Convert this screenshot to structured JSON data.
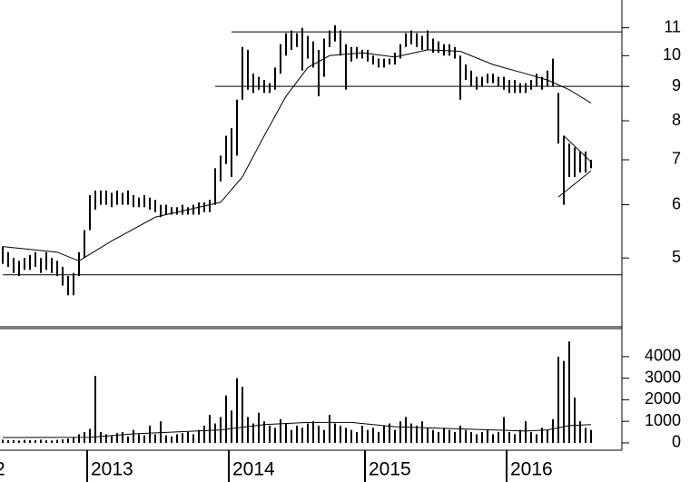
{
  "chart_data": [
    {
      "type": "range",
      "log": true,
      "color": "#000",
      "ylim": [
        3.95,
        12.1
      ],
      "yticks": [
        5,
        6,
        7,
        8,
        9,
        10,
        11
      ],
      "highs": [
        5.2,
        5.1,
        5.0,
        4.95,
        5.0,
        5.05,
        5.1,
        5.0,
        5.1,
        5.0,
        4.95,
        4.85,
        4.7,
        4.75,
        5.1,
        5.5,
        6.2,
        6.3,
        6.3,
        6.3,
        6.25,
        6.3,
        6.25,
        6.3,
        6.2,
        6.15,
        6.2,
        6.15,
        6.1,
        6.0,
        6.0,
        5.95,
        5.95,
        6.0,
        5.95,
        6.0,
        6.05,
        6.05,
        6.1,
        6.8,
        7.1,
        7.6,
        7.8,
        8.6,
        10.3,
        10.2,
        9.4,
        9.3,
        9.2,
        9.1,
        9.6,
        10.4,
        10.8,
        10.9,
        10.8,
        11.0,
        10.7,
        10.5,
        10.2,
        10.6,
        10.9,
        11.1,
        10.9,
        10.4,
        10.3,
        10.3,
        10.2,
        10.2,
        10.0,
        9.9,
        9.9,
        9.9,
        10.1,
        10.4,
        10.8,
        10.9,
        10.8,
        10.7,
        10.9,
        10.6,
        10.5,
        10.4,
        10.4,
        10.3,
        10.0,
        9.7,
        9.5,
        9.3,
        9.3,
        9.4,
        9.4,
        9.3,
        9.3,
        9.2,
        9.2,
        9.1,
        9.1,
        9.2,
        9.4,
        9.3,
        9.5,
        9.9,
        8.8,
        7.6,
        7.4,
        7.3,
        7.2,
        7.2,
        7.0
      ],
      "lows": [
        4.9,
        4.85,
        4.75,
        4.7,
        4.8,
        4.8,
        4.85,
        4.75,
        4.8,
        4.75,
        4.7,
        4.55,
        4.4,
        4.4,
        4.7,
        5.0,
        5.5,
        5.9,
        6.0,
        6.0,
        5.95,
        6.0,
        6.0,
        6.0,
        5.95,
        5.95,
        5.95,
        5.9,
        5.85,
        5.75,
        5.8,
        5.8,
        5.8,
        5.8,
        5.8,
        5.8,
        5.8,
        5.85,
        5.85,
        6.0,
        6.5,
        6.9,
        6.6,
        7.1,
        8.6,
        8.9,
        8.8,
        8.9,
        8.8,
        8.8,
        8.9,
        9.4,
        10.0,
        10.2,
        10.3,
        9.5,
        9.9,
        9.6,
        8.7,
        9.3,
        10.3,
        10.5,
        10.0,
        8.9,
        9.8,
        9.9,
        9.9,
        9.8,
        9.7,
        9.6,
        9.6,
        9.7,
        9.7,
        9.9,
        10.3,
        10.4,
        10.3,
        10.2,
        10.2,
        10.1,
        10.1,
        10.0,
        10.0,
        9.9,
        8.6,
        9.2,
        9.0,
        8.9,
        9.0,
        9.1,
        9.1,
        9.0,
        8.9,
        8.8,
        8.8,
        8.8,
        8.8,
        8.9,
        9.0,
        8.9,
        9.0,
        9.0,
        7.4,
        6.0,
        6.6,
        6.6,
        6.7,
        6.7,
        6.8
      ],
      "ma": {
        "x": [
          0,
          10,
          14,
          20,
          28,
          36,
          40,
          44,
          48,
          52,
          56,
          60,
          66,
          72,
          78,
          84,
          90,
          96,
          100,
          104,
          108
        ],
        "values": [
          5.2,
          5.1,
          4.95,
          5.3,
          5.75,
          5.95,
          6.05,
          6.6,
          7.6,
          8.7,
          9.6,
          10.0,
          10.1,
          9.95,
          10.2,
          10.15,
          9.7,
          9.4,
          9.2,
          8.9,
          8.5
        ]
      },
      "levels": [
        {
          "value": 10.85,
          "from": 42
        },
        {
          "value": 9.0,
          "from": 39
        },
        {
          "value": 4.72,
          "from": 0
        }
      ],
      "trendlines": [
        {
          "x": [
            103,
            108
          ],
          "values": [
            7.6,
            6.95
          ]
        },
        {
          "x": [
            102,
            108
          ],
          "values": [
            6.16,
            6.74
          ]
        }
      ]
    },
    {
      "type": "bar",
      "color": "#000",
      "ylim": [
        -340,
        5300
      ],
      "yticks": [
        0,
        1000,
        2000,
        3000,
        4000
      ],
      "categories": [
        "2",
        null,
        null,
        null,
        null,
        null,
        null,
        null,
        null,
        null,
        null,
        null,
        null,
        null,
        null,
        null,
        "2013",
        null,
        null,
        null,
        null,
        null,
        null,
        null,
        null,
        null,
        null,
        null,
        null,
        null,
        null,
        null,
        null,
        null,
        null,
        null,
        null,
        null,
        null,
        null,
        null,
        null,
        "2014",
        null,
        null,
        null,
        null,
        null,
        null,
        null,
        null,
        null,
        null,
        null,
        null,
        null,
        null,
        null,
        null,
        null,
        null,
        null,
        null,
        null,
        null,
        null,
        null,
        "2015",
        null,
        null,
        null,
        null,
        null,
        null,
        null,
        null,
        null,
        null,
        null,
        null,
        null,
        null,
        null,
        null,
        null,
        null,
        null,
        null,
        null,
        null,
        null,
        null,
        null,
        "2016",
        null,
        null,
        null,
        null,
        null,
        null,
        null,
        null,
        null,
        null,
        null,
        null,
        null,
        null,
        null
      ],
      "values": [
        150,
        120,
        130,
        110,
        140,
        120,
        130,
        150,
        120,
        110,
        140,
        160,
        200,
        250,
        400,
        500,
        650,
        3100,
        500,
        400,
        350,
        450,
        500,
        300,
        600,
        400,
        350,
        800,
        400,
        1000,
        350,
        300,
        400,
        450,
        500,
        400,
        600,
        800,
        1300,
        900,
        1200,
        2200,
        1500,
        3000,
        2600,
        1200,
        900,
        1400,
        1000,
        800,
        700,
        1100,
        900,
        600,
        800,
        700,
        900,
        1000,
        800,
        600,
        1300,
        900,
        800,
        700,
        600,
        500,
        800,
        600,
        700,
        500,
        800,
        900,
        600,
        1000,
        1200,
        900,
        800,
        1000,
        700,
        600,
        500,
        700,
        600,
        500,
        800,
        600,
        500,
        400,
        500,
        600,
        400,
        500,
        1200,
        500,
        400,
        600,
        1000,
        500,
        400,
        700,
        600,
        1100,
        4000,
        3800,
        4700,
        2100,
        1000,
        700,
        600
      ],
      "ma": {
        "x": [
          0,
          16,
          24,
          40,
          48,
          56,
          64,
          72,
          84,
          96,
          100,
          104,
          108
        ],
        "values": [
          250,
          260,
          420,
          600,
          850,
          950,
          950,
          750,
          650,
          550,
          600,
          800,
          850
        ]
      }
    }
  ]
}
